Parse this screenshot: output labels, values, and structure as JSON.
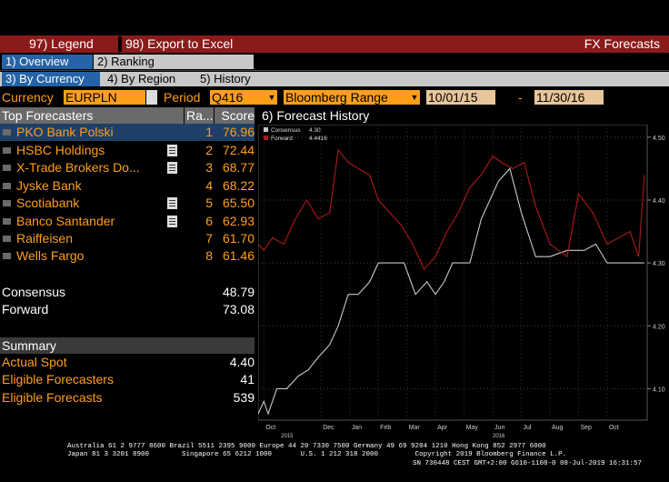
{
  "toolbar": {
    "legend": "97) Legend",
    "export": "98) Export to Excel",
    "title": "FX Forecasts"
  },
  "tabs": [
    {
      "label": "1) Overview",
      "active": true
    },
    {
      "label": "2) Ranking",
      "active": false
    }
  ],
  "subtabs": [
    {
      "label": "3) By Currency",
      "active": true
    },
    {
      "label": "4) By Region",
      "active": false
    },
    {
      "label": "5) History",
      "active": false
    }
  ],
  "filters": {
    "currency_label": "Currency",
    "currency_value": "EURPLN",
    "period_label": "Period",
    "period_value": "Q416",
    "range_value": "Bloomberg Range",
    "date_from": "10/01/15",
    "date_sep": "-",
    "date_to": "11/30/16"
  },
  "table": {
    "header_name": "Top Forecasters",
    "header_rank": "Ra...",
    "header_score": "Score",
    "rows": [
      {
        "name": "PKO Bank Polski",
        "rank": "1",
        "score": "76.96",
        "note": false,
        "selected": true
      },
      {
        "name": "HSBC Holdings",
        "rank": "2",
        "score": "72.44",
        "note": true,
        "selected": false
      },
      {
        "name": "X-Trade Brokers Do...",
        "rank": "3",
        "score": "68.77",
        "note": true,
        "selected": false
      },
      {
        "name": "Jyske Bank",
        "rank": "4",
        "score": "68.22",
        "note": false,
        "selected": false
      },
      {
        "name": "Scotiabank",
        "rank": "5",
        "score": "65.50",
        "note": true,
        "selected": false
      },
      {
        "name": "Banco Santander",
        "rank": "6",
        "score": "62.93",
        "note": true,
        "selected": false
      },
      {
        "name": "Raiffeisen",
        "rank": "7",
        "score": "61.70",
        "note": false,
        "selected": false
      },
      {
        "name": "Wells Fargo",
        "rank": "8",
        "score": "61.46",
        "note": false,
        "selected": false
      }
    ]
  },
  "consensus": {
    "label": "Consensus",
    "value": "48.79"
  },
  "forward": {
    "label": "Forward",
    "value": "73.08"
  },
  "summary": {
    "title": "Summary",
    "items": [
      {
        "label": "Actual Spot",
        "value": "4.40"
      },
      {
        "label": "Eligible Forecasters",
        "value": "41"
      },
      {
        "label": "Eligible Forecasts",
        "value": "539"
      }
    ]
  },
  "chart_panel_title": "6) Forecast History",
  "chart_data": {
    "type": "line",
    "ylim": [
      4.05,
      4.52
    ],
    "yticks": [
      "4.50",
      "4.40",
      "4.30",
      "4.20",
      "4.10"
    ],
    "ytick_values": [
      4.5,
      4.4,
      4.3,
      4.2,
      4.1
    ],
    "xticks": [
      "Oct",
      "Dec",
      "Jan",
      "Feb",
      "Mar",
      "Apr",
      "May",
      "Jun",
      "Jul",
      "Aug",
      "Sep",
      "Oct"
    ],
    "xtick_pos": [
      0,
      2,
      3,
      4,
      5,
      6,
      7,
      8,
      9,
      10,
      11,
      12
    ],
    "year_labels": [
      {
        "label": "2015",
        "pos": 0.6
      },
      {
        "label": "2016",
        "pos": 8.0
      }
    ],
    "xlim": [
      -0.2,
      13.4
    ],
    "legend": [
      {
        "name": "Consensus",
        "value": "4.30",
        "color": "#c8c8c8"
      },
      {
        "name": "Forward",
        "value": "4.4416",
        "color": "#b01818"
      }
    ],
    "series": [
      {
        "name": "Consensus",
        "color": "#c8c8c8",
        "x": [
          -0.2,
          0.0,
          0.15,
          0.45,
          0.8,
          1.2,
          1.55,
          1.9,
          2.3,
          2.6,
          2.95,
          3.3,
          3.7,
          4.0,
          4.3,
          4.9,
          5.3,
          5.7,
          6.0,
          6.3,
          6.6,
          6.9,
          7.2,
          7.6,
          8.0,
          8.2,
          8.6,
          9.0,
          9.5,
          10.0,
          10.6,
          11.2,
          11.6,
          12.0,
          12.6,
          13.3
        ],
        "values": [
          4.06,
          4.08,
          4.06,
          4.1,
          4.1,
          4.12,
          4.13,
          4.15,
          4.17,
          4.2,
          4.25,
          4.25,
          4.27,
          4.3,
          4.3,
          4.3,
          4.25,
          4.27,
          4.25,
          4.27,
          4.3,
          4.3,
          4.3,
          4.37,
          4.41,
          4.43,
          4.45,
          4.38,
          4.31,
          4.31,
          4.32,
          4.32,
          4.33,
          4.3,
          4.3,
          4.3
        ]
      },
      {
        "name": "Forward",
        "color": "#b01818",
        "x": [
          -0.2,
          0.0,
          0.3,
          0.7,
          1.1,
          1.5,
          1.9,
          2.3,
          2.6,
          2.95,
          3.3,
          3.7,
          4.0,
          4.4,
          4.8,
          5.2,
          5.6,
          6.0,
          6.4,
          6.8,
          7.2,
          7.6,
          8.0,
          8.3,
          8.7,
          9.1,
          9.5,
          10.0,
          10.6,
          11.0,
          11.5,
          12.0,
          12.4,
          12.8,
          13.1,
          13.3
        ],
        "values": [
          4.33,
          4.32,
          4.34,
          4.33,
          4.37,
          4.4,
          4.37,
          4.38,
          4.48,
          4.46,
          4.45,
          4.44,
          4.4,
          4.38,
          4.36,
          4.33,
          4.29,
          4.31,
          4.35,
          4.38,
          4.42,
          4.44,
          4.47,
          4.46,
          4.45,
          4.46,
          4.39,
          4.33,
          4.31,
          4.41,
          4.38,
          4.33,
          4.34,
          4.35,
          4.31,
          4.44
        ]
      }
    ]
  },
  "footer": {
    "line1": "Australia 61 2 9777 8600 Brazil 5511 2395 9000 Europe 44 20 7330 7500 Germany 49 69 9204 1210 Hong Kong 852 2977 6000",
    "line2": "Japan 81 3 3201 8900        Singapore 65 6212 1000       U.S. 1 212 318 2000         Copyright 2019 Bloomberg Finance L.P.",
    "line3": "SN 730448 CEST GMT+2:00 G610-1108-0 08-Jul-2019 16:31:57"
  }
}
